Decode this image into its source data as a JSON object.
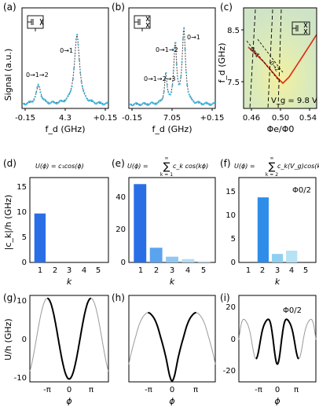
{
  "panels": {
    "a": {
      "letter": "(a)",
      "ylabel": "Signal (a.u.)",
      "xlabel": "f_d (GHz)",
      "xticks": [
        "-0.15",
        "4.3",
        "+0.15"
      ],
      "annotations": [
        "0→1",
        "0→1→2"
      ]
    },
    "b": {
      "letter": "(b)",
      "xlabel": "f_d (GHz)",
      "xticks": [
        "-0.15",
        "7.05",
        "+0.15"
      ],
      "annotations": [
        "0→1",
        "0→1→2",
        "0→1→2→3"
      ]
    },
    "c": {
      "letter": "(c)",
      "ylabel": "f_d (GHz)",
      "xlabel": "Φe/Φ0",
      "xticks": [
        "0.46",
        "0.50",
        "0.54"
      ],
      "yticks": [
        "8.5",
        "7.5"
      ],
      "vg_label": "V_g = 9.8 V",
      "line_labels": [
        "0→1",
        "0→2"
      ]
    },
    "d": {
      "letter": "(d)",
      "formula": "U(ϕ) = c₁cos(ϕ)",
      "ylabel": "|c_k|/h (GHz)",
      "xlabel": "k",
      "yticks": [
        "0",
        "5",
        "10",
        "15"
      ],
      "xticks": [
        "1",
        "2",
        "3",
        "4",
        "5"
      ]
    },
    "e": {
      "letter": "(e)",
      "formula_lhs": "U(ϕ) =",
      "formula_rhs": "c_k cos(kϕ)",
      "sum_top": "∞",
      "sum_bottom": "k = 1",
      "xlabel": "k",
      "yticks": [
        "0",
        "20",
        "40"
      ],
      "xticks": [
        "1",
        "2",
        "3",
        "4",
        "5"
      ]
    },
    "f": {
      "letter": "(f)",
      "formula_lhs": "U(ϕ) =",
      "formula_rhs": "c_k(V_g)cos(kϕ)",
      "sum_top": "∞",
      "sum_bottom": "k = 2",
      "inset": "Φ0/2",
      "xlabel": "k",
      "yticks": [
        "0",
        "5",
        "10",
        "15"
      ],
      "xticks": [
        "1",
        "2",
        "3",
        "4",
        "5"
      ]
    },
    "g": {
      "letter": "(g)",
      "ylabel": "U/h (GHz)",
      "xlabel": "ϕ",
      "yticks": [
        "10",
        "0",
        "-10"
      ],
      "xticks": [
        "-π",
        "0",
        "π"
      ]
    },
    "h": {
      "letter": "(h)",
      "xlabel": "ϕ",
      "xticks": [
        "-π",
        "0",
        "π"
      ]
    },
    "i": {
      "letter": "(i)",
      "inset": "Φ0/2",
      "xlabel": "ϕ",
      "yticks": [
        "20",
        "0",
        "-20"
      ],
      "xticks": [
        "-π",
        "0",
        "π"
      ]
    }
  },
  "colors": {
    "data_points": "#3fb7e0",
    "fit": "#555555",
    "bar_d": "#2a6ee6",
    "bar_e": [
      "#2a6ee6",
      "#5aa4ee",
      "#8ec8f3",
      "#b0dcf6",
      "#cfeafa"
    ],
    "bar_f": [
      "#2e8de8",
      "#8fd0f0",
      "#b6e2f6"
    ],
    "potential_bold": "#000000",
    "potential_thin": "#999999",
    "map_bg": "#d8e9c8",
    "map_line": "#e02a10"
  },
  "chart_data": [
    {
      "type": "bar",
      "panel": "d",
      "categories": [
        "1",
        "2",
        "3",
        "4",
        "5"
      ],
      "values": [
        9.8,
        0,
        0,
        0,
        0
      ],
      "ylabel": "|c_k|/h (GHz)",
      "xlabel": "k",
      "ylim": [
        0,
        17
      ]
    },
    {
      "type": "bar",
      "panel": "e",
      "categories": [
        "1",
        "2",
        "3",
        "4",
        "5"
      ],
      "values": [
        48,
        9,
        3.5,
        2,
        1
      ],
      "xlabel": "k",
      "ylim": [
        0,
        52
      ]
    },
    {
      "type": "bar",
      "panel": "f",
      "categories": [
        "1",
        "2",
        "3",
        "4",
        "5"
      ],
      "values": [
        0,
        13.8,
        1.8,
        2.5,
        0
      ],
      "xlabel": "k",
      "ylim": [
        0,
        18
      ]
    },
    {
      "type": "line",
      "panel": "g",
      "xlabel": "ϕ",
      "ylim": [
        -10.5,
        10.5
      ],
      "coefficients": {
        "1": 9.8
      },
      "bold_range_over_pi": [
        -1,
        1
      ],
      "full_range_over_pi": [
        -1.8,
        1.8
      ]
    },
    {
      "type": "line",
      "panel": "h",
      "xlabel": "ϕ",
      "ylim": [
        -65,
        68
      ],
      "coefficients": {
        "1": 48,
        "2": 9,
        "3": 3.5,
        "4": 2,
        "5": 1
      },
      "bold_range_over_pi": [
        -1,
        1
      ],
      "full_range_over_pi": [
        -1.8,
        1.8
      ]
    },
    {
      "type": "line",
      "panel": "i",
      "xlabel": "ϕ",
      "ylim": [
        -30,
        28
      ],
      "coefficients": {
        "2": 13.8,
        "3": 1.8,
        "4": 2.5
      },
      "bold_range_over_pi": [
        -1,
        1
      ],
      "full_range_over_pi": [
        -1.8,
        1.8
      ]
    }
  ]
}
